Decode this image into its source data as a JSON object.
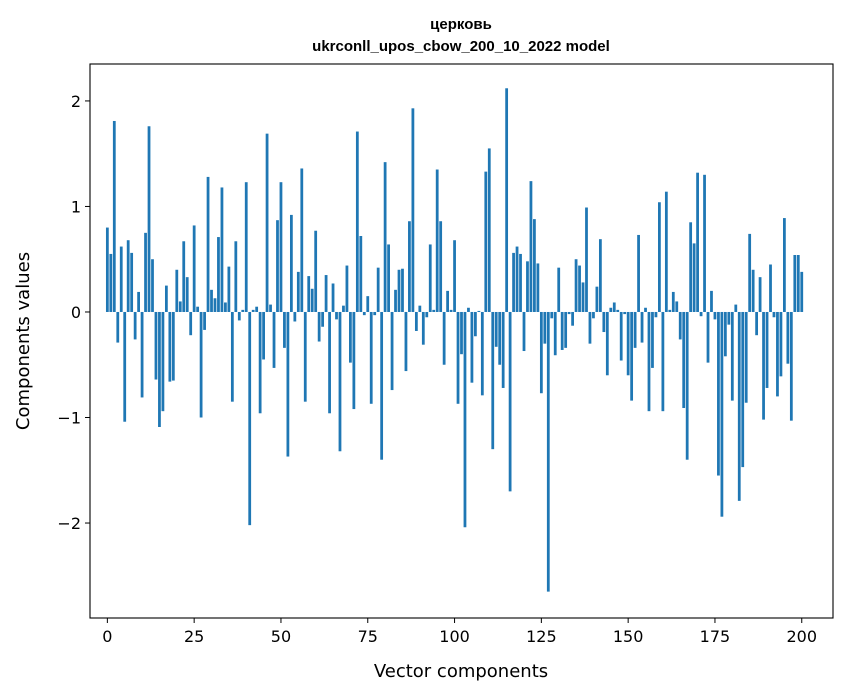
{
  "chart_data": {
    "type": "bar",
    "title": "церковь",
    "subtitle": "ukrconll_upos_cbow_200_10_2022 model",
    "xlabel": "Vector components",
    "ylabel": "Components values",
    "xlim": [
      -5,
      209
    ],
    "ylim": [
      -2.9,
      2.35
    ],
    "xticks": [
      0,
      25,
      50,
      75,
      100,
      125,
      150,
      175,
      200
    ],
    "yticks": [
      -2,
      -1,
      0,
      1,
      2
    ],
    "xtick_labels": [
      "0",
      "25",
      "50",
      "75",
      "100",
      "125",
      "150",
      "175",
      "200"
    ],
    "ytick_labels": [
      "−2",
      "−1",
      "0",
      "1",
      "2"
    ],
    "grid": false,
    "bar_color": "#1f77b4",
    "values": [
      0.8,
      0.55,
      1.81,
      -0.29,
      0.62,
      -1.04,
      0.68,
      0.56,
      -0.26,
      0.19,
      -0.81,
      0.75,
      1.76,
      0.5,
      -0.64,
      -1.09,
      -0.94,
      0.25,
      -0.66,
      -0.65,
      0.4,
      0.1,
      0.67,
      0.33,
      -0.22,
      0.82,
      0.05,
      -1.0,
      -0.17,
      1.28,
      0.21,
      0.13,
      0.71,
      1.18,
      0.09,
      0.43,
      -0.85,
      0.67,
      -0.08,
      0.02,
      1.23,
      -2.02,
      0.02,
      0.05,
      -0.96,
      -0.45,
      1.69,
      0.07,
      -0.53,
      0.87,
      1.23,
      -0.34,
      -1.37,
      0.92,
      -0.09,
      0.38,
      1.36,
      -0.85,
      0.34,
      0.22,
      0.77,
      -0.28,
      -0.14,
      0.35,
      -0.96,
      0.27,
      -0.07,
      -1.32,
      0.06,
      0.44,
      -0.48,
      -0.92,
      1.71,
      0.72,
      -0.03,
      0.15,
      -0.87,
      -0.03,
      0.42,
      -1.4,
      1.42,
      0.64,
      -0.74,
      0.21,
      0.4,
      0.41,
      -0.56,
      0.86,
      1.93,
      -0.18,
      0.06,
      -0.31,
      -0.05,
      0.64,
      0.02,
      1.35,
      0.86,
      -0.5,
      0.2,
      0.02,
      0.68,
      -0.87,
      -0.4,
      -2.04,
      0.04,
      -0.67,
      -0.23,
      0.01,
      -0.79,
      1.33,
      1.55,
      -1.3,
      -0.33,
      -0.5,
      -0.72,
      2.12,
      -1.7,
      0.56,
      0.62,
      0.55,
      -0.37,
      0.48,
      1.24,
      0.88,
      0.46,
      -0.77,
      -0.3,
      -2.65,
      -0.06,
      -0.41,
      0.42,
      -0.36,
      -0.34,
      -0.02,
      -0.13,
      0.5,
      0.44,
      0.28,
      0.99,
      -0.3,
      -0.06,
      0.24,
      0.69,
      -0.19,
      -0.6,
      0.04,
      0.09,
      0.02,
      -0.46,
      -0.02,
      -0.6,
      -0.84,
      -0.34,
      0.73,
      -0.29,
      0.04,
      -0.94,
      -0.53,
      -0.05,
      1.04,
      -0.94,
      1.14,
      0.02,
      0.19,
      0.1,
      -0.26,
      -0.91,
      -1.4,
      0.85,
      0.65,
      1.32,
      -0.04,
      1.3,
      -0.48,
      0.2,
      -0.07,
      -1.55,
      -1.94,
      -0.42,
      -0.12,
      -0.84,
      0.07,
      -1.79,
      -1.47,
      -0.86,
      0.74,
      0.4,
      -0.22,
      0.33,
      -1.02,
      -0.72,
      0.45,
      -0.05,
      -0.8,
      -0.61,
      0.89,
      -0.49,
      -1.03,
      0.54,
      0.54,
      0.38
    ]
  }
}
